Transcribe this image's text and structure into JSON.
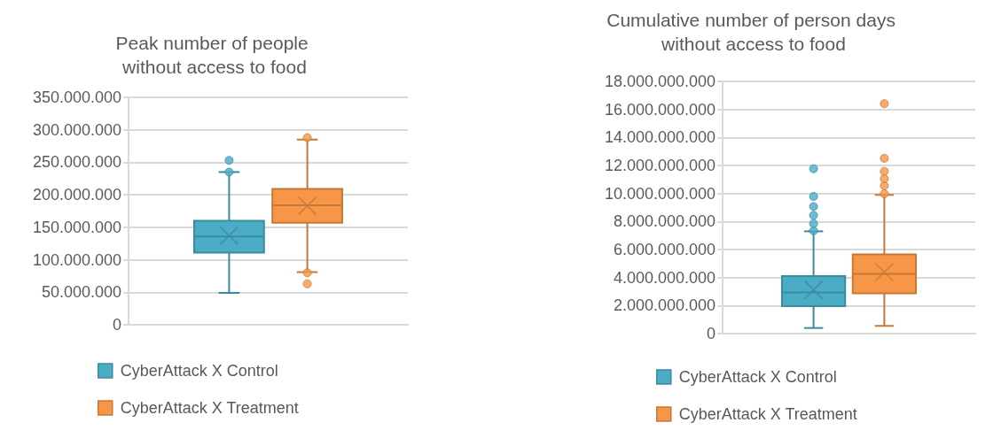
{
  "chart_data": [
    {
      "type": "box",
      "title": "Peak number of people without access to food",
      "categories": [
        null
      ],
      "series": [
        {
          "name": "CyberAttack X Control",
          "color": "#4bacc6",
          "boxes": [
            {
              "low": 49000000,
              "q1": 111000000,
              "median": 136000000,
              "q3": 160000000,
              "high": 235000000,
              "mean": 137000000,
              "outliers": [
                235000000,
                253000000
              ]
            }
          ]
        },
        {
          "name": "CyberAttack X Treatment",
          "color": "#f79646",
          "boxes": [
            {
              "low": 81000000,
              "q1": 157000000,
              "median": 184000000,
              "q3": 209000000,
              "high": 285000000,
              "mean": 183000000,
              "outliers": [
                288000000,
                80000000,
                63000000
              ]
            }
          ]
        }
      ],
      "ylim": [
        0,
        350000000
      ],
      "yticks": [
        {
          "value": 0,
          "label": "0"
        },
        {
          "value": 50000000,
          "label": "50.000.000"
        },
        {
          "value": 100000000,
          "label": "100.000.000"
        },
        {
          "value": 150000000,
          "label": "150.000.000"
        },
        {
          "value": 200000000,
          "label": "200.000.000"
        },
        {
          "value": 250000000,
          "label": "250.000.000"
        },
        {
          "value": 300000000,
          "label": "300.000.000"
        },
        {
          "value": 350000000,
          "label": "350.000.000"
        }
      ],
      "grid": "y",
      "legend": "bottom"
    },
    {
      "type": "box",
      "title": "Cumulative number of person days without access to food",
      "categories": [
        null
      ],
      "series": [
        {
          "name": "CyberAttack X Control",
          "color": "#4bacc6",
          "boxes": [
            {
              "low": 400000000,
              "q1": 1960000000,
              "median": 2930000000,
              "q3": 4110000000,
              "high": 7300000000,
              "mean": 3120000000,
              "outliers": [
                7340000000,
                7850000000,
                8440000000,
                9070000000,
                9790000000,
                11770000000
              ]
            }
          ]
        },
        {
          "name": "CyberAttack X Treatment",
          "color": "#f79646",
          "boxes": [
            {
              "low": 550000000,
              "q1": 2870000000,
              "median": 4260000000,
              "q3": 5650000000,
              "high": 9900000000,
              "mean": 4390000000,
              "outliers": [
                9980000000,
                10550000000,
                11060000000,
                11580000000,
                12510000000,
                16410000000
              ]
            }
          ]
        }
      ],
      "ylim": [
        0,
        18000000000
      ],
      "yticks": [
        {
          "value": 0,
          "label": "0"
        },
        {
          "value": 2000000000,
          "label": "2.000.000.000"
        },
        {
          "value": 4000000000,
          "label": "4.000.000.000"
        },
        {
          "value": 6000000000,
          "label": "6.000.000.000"
        },
        {
          "value": 8000000000,
          "label": "8.000.000.000"
        },
        {
          "value": 10000000000,
          "label": "10.000.000.000"
        },
        {
          "value": 12000000000,
          "label": "12.000.000.000"
        },
        {
          "value": 14000000000,
          "label": "14.000.000.000"
        },
        {
          "value": 16000000000,
          "label": "16.000.000.000"
        },
        {
          "value": 18000000000,
          "label": "18.000.000.000"
        }
      ],
      "grid": "y",
      "legend": "bottom"
    }
  ]
}
